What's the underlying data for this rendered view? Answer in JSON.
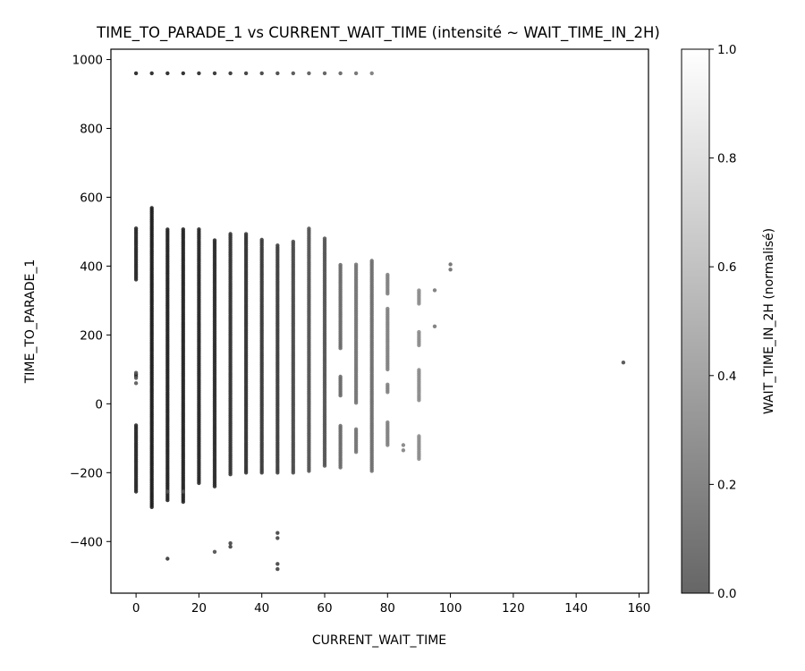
{
  "chart_data": {
    "type": "scatter",
    "title": "TIME_TO_PARADE_1 vs CURRENT_WAIT_TIME (intensité ~ WAIT_TIME_IN_2H)",
    "xlabel": "CURRENT_WAIT_TIME",
    "ylabel": "TIME_TO_PARADE_1",
    "xlim": [
      -8,
      163
    ],
    "ylim": [
      -550,
      1030
    ],
    "xticks": [
      0,
      20,
      40,
      60,
      80,
      100,
      120,
      140,
      160
    ],
    "yticks": [
      -400,
      -200,
      0,
      200,
      400,
      600,
      800,
      1000
    ],
    "grid": false,
    "colormap": "Greys (reversed), alpha 0.6",
    "colorbar": {
      "label": "WAIT_TIME_IN_2H (normalisé)",
      "range": [
        0,
        1
      ],
      "ticks": [
        "0.0",
        "0.2",
        "0.4",
        "0.6",
        "0.8",
        "1.0"
      ]
    },
    "columns": [
      {
        "x": 0,
        "ymin": -255,
        "ymax": 510,
        "gaps": [
          [
            90,
            360
          ],
          [
            -60,
            80
          ]
        ],
        "c": 0.1
      },
      {
        "x": 5,
        "ymin": -300,
        "ymax": 570,
        "c": 0.05
      },
      {
        "x": 10,
        "ymin": -280,
        "ymax": 510,
        "c": 0.08
      },
      {
        "x": 15,
        "ymin": -285,
        "ymax": 510,
        "c": 0.08
      },
      {
        "x": 20,
        "ymin": -230,
        "ymax": 510,
        "c": 0.1
      },
      {
        "x": 25,
        "ymin": -240,
        "ymax": 480,
        "c": 0.12
      },
      {
        "x": 30,
        "ymin": -205,
        "ymax": 495,
        "c": 0.15
      },
      {
        "x": 35,
        "ymin": -200,
        "ymax": 495,
        "c": 0.15
      },
      {
        "x": 40,
        "ymin": -200,
        "ymax": 480,
        "c": 0.18
      },
      {
        "x": 45,
        "ymin": -200,
        "ymax": 465,
        "c": 0.2
      },
      {
        "x": 50,
        "ymin": -200,
        "ymax": 475,
        "c": 0.25
      },
      {
        "x": 55,
        "ymin": -195,
        "ymax": 510,
        "c": 0.3
      },
      {
        "x": 60,
        "ymin": -180,
        "ymax": 480,
        "c": 0.3
      },
      {
        "x": 65,
        "ymin": -185,
        "ymax": 405,
        "gaps": [
          [
            -60,
            20
          ],
          [
            80,
            160
          ]
        ],
        "c": 0.4
      },
      {
        "x": 70,
        "ymin": -140,
        "ymax": 405,
        "gaps": [
          [
            -70,
            0
          ]
        ],
        "c": 0.45
      },
      {
        "x": 75,
        "ymin": -195,
        "ymax": 420,
        "c": 0.42
      },
      {
        "x": 80,
        "ymin": -120,
        "ymax": 375,
        "gaps": [
          [
            -50,
            30
          ],
          [
            60,
            100
          ],
          [
            280,
            320
          ]
        ],
        "c": 0.5
      },
      {
        "x": 90,
        "ymin": -160,
        "ymax": 330,
        "gaps": [
          [
            -90,
            10
          ],
          [
            100,
            170
          ],
          [
            210,
            290
          ]
        ],
        "c": 0.55
      }
    ],
    "points": [
      {
        "x": 85,
        "y": -120,
        "c": 0.5
      },
      {
        "x": 85,
        "y": -135,
        "c": 0.5
      },
      {
        "x": 95,
        "y": 330,
        "c": 0.45
      },
      {
        "x": 95,
        "y": 225,
        "c": 0.45
      },
      {
        "x": 100,
        "y": 405,
        "c": 0.4
      },
      {
        "x": 100,
        "y": 390,
        "c": 0.4
      },
      {
        "x": 155,
        "y": 120,
        "c": 0.25
      },
      {
        "x": 10,
        "y": -255,
        "c": 0.3
      },
      {
        "x": 10,
        "y": -450,
        "c": 0.15
      },
      {
        "x": 15,
        "y": -255,
        "c": 0.3
      },
      {
        "x": 25,
        "y": -430,
        "c": 0.25
      },
      {
        "x": 30,
        "y": -405,
        "c": 0.2
      },
      {
        "x": 30,
        "y": -415,
        "c": 0.2
      },
      {
        "x": 45,
        "y": -375,
        "c": 0.2
      },
      {
        "x": 45,
        "y": -390,
        "c": 0.2
      },
      {
        "x": 45,
        "y": -465,
        "c": 0.2
      },
      {
        "x": 45,
        "y": -480,
        "c": 0.2
      },
      {
        "x": 0,
        "y": 90,
        "c": 0.3
      },
      {
        "x": 0,
        "y": 75,
        "c": 0.3
      },
      {
        "x": 0,
        "y": 60,
        "c": 0.3
      }
    ],
    "row_at_960": {
      "y": 960,
      "x": [
        0,
        5,
        10,
        15,
        20,
        25,
        30,
        35,
        40,
        45,
        50,
        55,
        60,
        65,
        70,
        75
      ],
      "c": [
        0.05,
        0.05,
        0.05,
        0.05,
        0.08,
        0.1,
        0.12,
        0.15,
        0.18,
        0.2,
        0.25,
        0.3,
        0.3,
        0.35,
        0.4,
        0.45
      ]
    }
  }
}
